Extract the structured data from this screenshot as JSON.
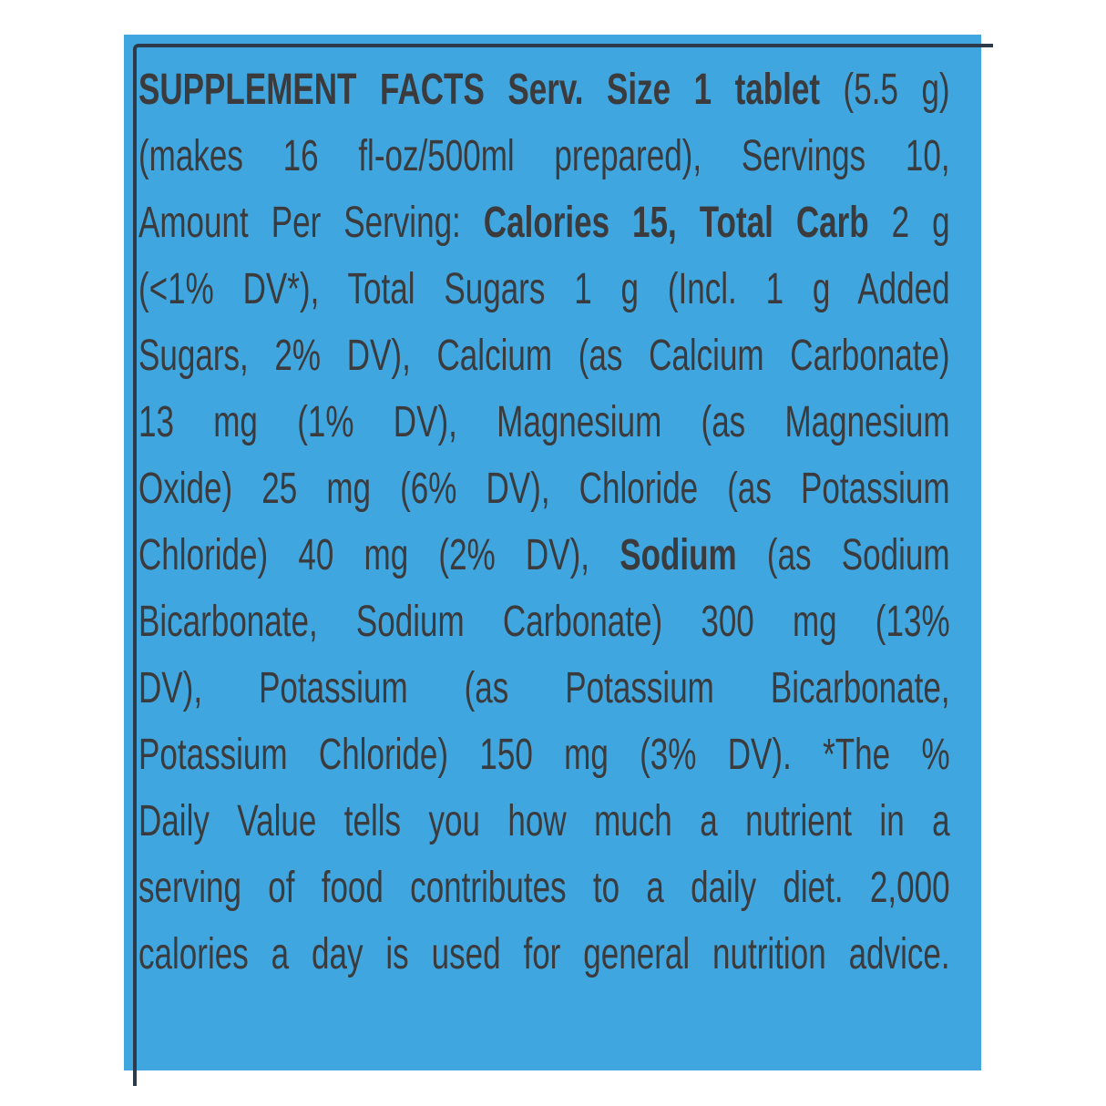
{
  "label": {
    "background_color": "#3fa6df",
    "text_color": "#3b3b3d",
    "lines": [
      [
        {
          "t": "SUPPLEMENT FACTS Serv. Size 1 tablet",
          "b": true
        },
        {
          "t": " (5.5 g)",
          "b": false
        }
      ],
      [
        {
          "t": "(makes 16 fl-oz/500ml prepared), Servings 10,",
          "b": false
        }
      ],
      [
        {
          "t": "Amount Per Serving: ",
          "b": false
        },
        {
          "t": "Calories 15, Total Carb",
          "b": true
        },
        {
          "t": " 2 g",
          "b": false
        }
      ],
      [
        {
          "t": "(<1% DV*), Total Sugars 1 g (Incl. 1 g Added",
          "b": false
        }
      ],
      [
        {
          "t": "Sugars, 2% DV), Calcium (as Calcium Carbonate)",
          "b": false
        }
      ],
      [
        {
          "t": "13 mg (1% DV), Magnesium (as Magnesium",
          "b": false
        }
      ],
      [
        {
          "t": "Oxide) 25 mg (6% DV), Chloride (as Potassium",
          "b": false
        }
      ],
      [
        {
          "t": "Chloride) 40 mg (2% DV), ",
          "b": false
        },
        {
          "t": "Sodium",
          "b": true
        },
        {
          "t": " (as Sodium",
          "b": false
        }
      ],
      [
        {
          "t": "Bicarbonate, Sodium Carbonate) 300 mg (13%",
          "b": false
        }
      ],
      [
        {
          "t": "DV), Potassium (as Potassium Bicarbonate,",
          "b": false
        }
      ],
      [
        {
          "t": "Potassium Chloride) 150 mg (3% DV). *The %",
          "b": false
        }
      ],
      [
        {
          "t": "Daily Value tells you how much a nutrient in a",
          "b": false
        }
      ],
      [
        {
          "t": "serving of food contributes to a daily diet. 2,000",
          "b": false
        }
      ],
      [
        {
          "t": "calories a day is used for general nutrition advice.",
          "b": false
        }
      ]
    ]
  }
}
